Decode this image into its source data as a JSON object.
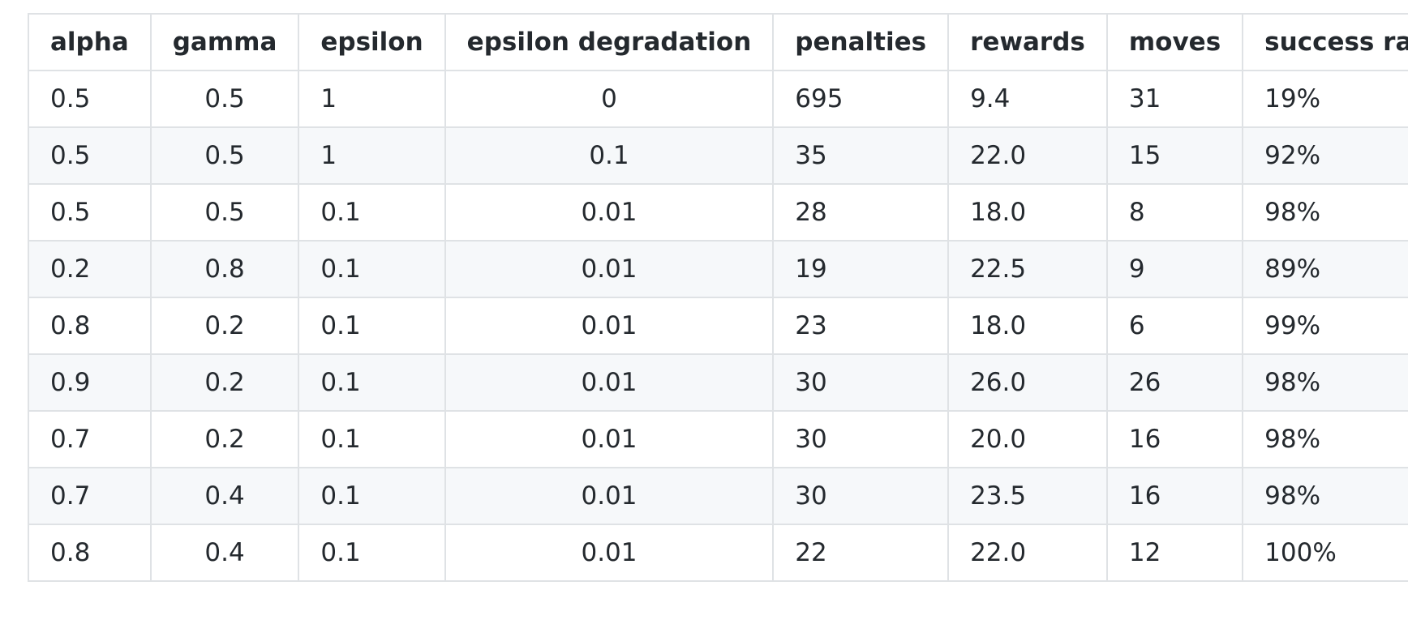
{
  "table": {
    "headers": [
      "alpha",
      "gamma",
      "epsilon",
      "epsilon degradation",
      "penalties",
      "rewards",
      "moves",
      "success rate"
    ],
    "rows": [
      [
        "0.5",
        "0.5",
        "1",
        "0",
        "695",
        "9.4",
        "31",
        "19%"
      ],
      [
        "0.5",
        "0.5",
        "1",
        "0.1",
        "35",
        "22.0",
        "15",
        "92%"
      ],
      [
        "0.5",
        "0.5",
        "0.1",
        "0.01",
        "28",
        "18.0",
        "8",
        "98%"
      ],
      [
        "0.2",
        "0.8",
        "0.1",
        "0.01",
        "19",
        "22.5",
        "9",
        "89%"
      ],
      [
        "0.8",
        "0.2",
        "0.1",
        "0.01",
        "23",
        "18.0",
        "6",
        "99%"
      ],
      [
        "0.9",
        "0.2",
        "0.1",
        "0.01",
        "30",
        "26.0",
        "26",
        "98%"
      ],
      [
        "0.7",
        "0.2",
        "0.1",
        "0.01",
        "30",
        "20.0",
        "16",
        "98%"
      ],
      [
        "0.7",
        "0.4",
        "0.1",
        "0.01",
        "30",
        "23.5",
        "16",
        "98%"
      ],
      [
        "0.8",
        "0.4",
        "0.1",
        "0.01",
        "22",
        "22.0",
        "12",
        "100%"
      ]
    ]
  }
}
